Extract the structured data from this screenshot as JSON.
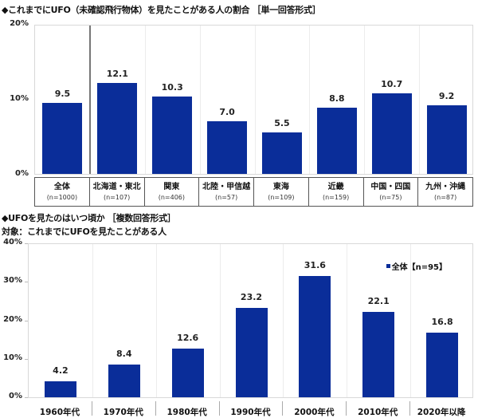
{
  "chart_data": [
    {
      "type": "bar",
      "title": "◆これまでにUFO（未確認飛行物体）を見たことがある人の割合 ［単一回答形式］",
      "xlabel": "",
      "ylabel": "",
      "ylim": [
        0,
        20
      ],
      "yticks": [
        "0%",
        "10%",
        "20%"
      ],
      "categories": [
        "全体",
        "北海道・東北",
        "関東",
        "北陸・甲信越",
        "東海",
        "近畿",
        "中国・四国",
        "九州・沖縄"
      ],
      "sample_sizes": [
        "(n=1000)",
        "(n=107)",
        "(n=406)",
        "(n=57)",
        "(n=109)",
        "(n=159)",
        "(n=75)",
        "(n=87)"
      ],
      "values": [
        9.5,
        12.1,
        10.3,
        7.0,
        5.5,
        8.8,
        10.7,
        9.2
      ],
      "value_labels": [
        "9.5",
        "12.1",
        "10.3",
        "7.0",
        "5.5",
        "8.8",
        "10.7",
        "9.2"
      ],
      "bar_color": "#0a2d99",
      "grid": false,
      "legend": null
    },
    {
      "type": "bar",
      "title": "◆UFOを見たのはいつ頃か ［複数回答形式］",
      "subtitle": "対象：これまでにUFOを見たことがある人",
      "xlabel": "",
      "ylabel": "",
      "ylim": [
        0,
        40
      ],
      "yticks": [
        "0%",
        "10%",
        "20%",
        "30%",
        "40%"
      ],
      "categories": [
        "1960年代",
        "1970年代",
        "1980年代",
        "1990年代",
        "2000年代",
        "2010年代",
        "2020年以降"
      ],
      "series": [
        {
          "name": "全体【n=95】",
          "values": [
            4.2,
            8.4,
            12.6,
            23.2,
            31.6,
            22.1,
            16.8
          ]
        }
      ],
      "value_labels": [
        "4.2",
        "8.4",
        "12.6",
        "23.2",
        "31.6",
        "22.1",
        "16.8"
      ],
      "bar_color": "#0a2d99",
      "grid": false,
      "legend_position": "top-right"
    }
  ]
}
